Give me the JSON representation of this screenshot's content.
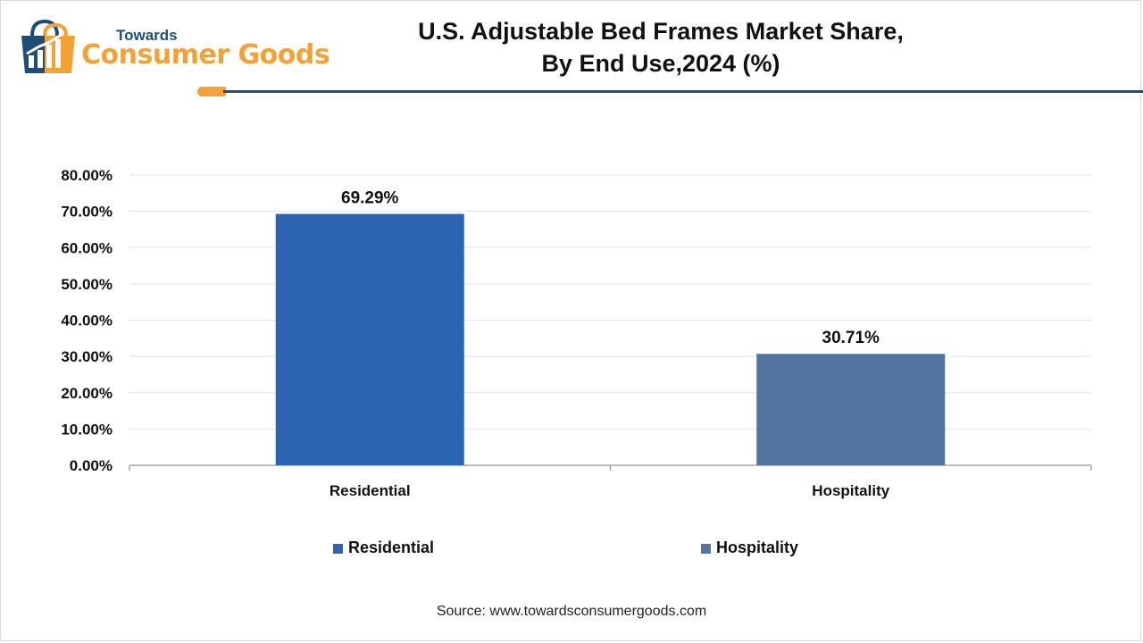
{
  "brand": {
    "top": "Towards",
    "main": "Consumer Goods",
    "colors": {
      "navy": "#1f4e79",
      "orange": "#f4a236"
    }
  },
  "title_line1": "U.S. Adjustable Bed Frames Market Share,",
  "title_line2": "By End Use,2024 (%)",
  "source": "Source: www.towardsconsumergoods.com",
  "chart_data": {
    "type": "bar",
    "title": "U.S. Adjustable Bed Frames Market Share, By End Use,2024 (%)",
    "categories": [
      "Residential",
      "Hospitality"
    ],
    "values": [
      69.29,
      30.71
    ],
    "value_labels": [
      "69.29%",
      "30.71%"
    ],
    "colors": [
      "#2b64b1",
      "#53749e"
    ],
    "ylim": [
      0,
      80
    ],
    "yticks": [
      0,
      10,
      20,
      30,
      40,
      50,
      60,
      70,
      80
    ],
    "ytick_labels": [
      "0.00%",
      "10.00%",
      "20.00%",
      "30.00%",
      "40.00%",
      "50.00%",
      "60.00%",
      "70.00%",
      "80.00%"
    ],
    "grid": true,
    "legend": {
      "position": "bottom",
      "entries": [
        "Residential",
        "Hospitality"
      ]
    }
  }
}
